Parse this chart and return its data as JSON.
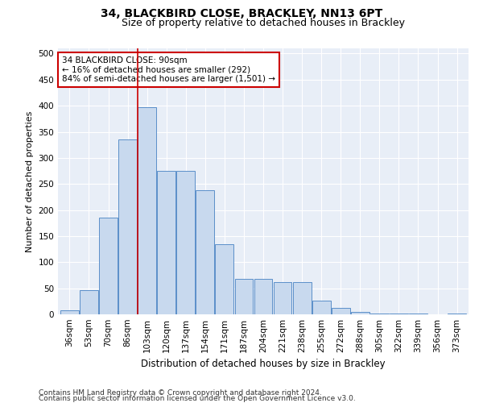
{
  "title1": "34, BLACKBIRD CLOSE, BRACKLEY, NN13 6PT",
  "title2": "Size of property relative to detached houses in Brackley",
  "xlabel": "Distribution of detached houses by size in Brackley",
  "ylabel": "Number of detached properties",
  "categories": [
    "36sqm",
    "53sqm",
    "70sqm",
    "86sqm",
    "103sqm",
    "120sqm",
    "137sqm",
    "154sqm",
    "171sqm",
    "187sqm",
    "204sqm",
    "221sqm",
    "238sqm",
    "255sqm",
    "272sqm",
    "288sqm",
    "305sqm",
    "322sqm",
    "339sqm",
    "356sqm",
    "373sqm"
  ],
  "values": [
    8,
    46,
    185,
    335,
    397,
    275,
    275,
    238,
    135,
    68,
    68,
    62,
    62,
    27,
    12,
    4,
    2,
    1,
    1,
    0,
    2
  ],
  "bar_color": "#c8d9ee",
  "bar_edge_color": "#5b8fc9",
  "property_line_x": 3.5,
  "annotation_text": "34 BLACKBIRD CLOSE: 90sqm\n← 16% of detached houses are smaller (292)\n84% of semi-detached houses are larger (1,501) →",
  "annotation_box_color": "#ffffff",
  "annotation_box_edge_color": "#cc0000",
  "property_line_color": "#cc0000",
  "ylim": [
    0,
    510
  ],
  "yticks": [
    0,
    50,
    100,
    150,
    200,
    250,
    300,
    350,
    400,
    450,
    500
  ],
  "plot_bg_color": "#e8eef7",
  "footer1": "Contains HM Land Registry data © Crown copyright and database right 2024.",
  "footer2": "Contains public sector information licensed under the Open Government Licence v3.0.",
  "title1_fontsize": 10,
  "title2_fontsize": 9,
  "xlabel_fontsize": 8.5,
  "ylabel_fontsize": 8,
  "tick_fontsize": 7.5,
  "annotation_fontsize": 7.5,
  "footer_fontsize": 6.5
}
